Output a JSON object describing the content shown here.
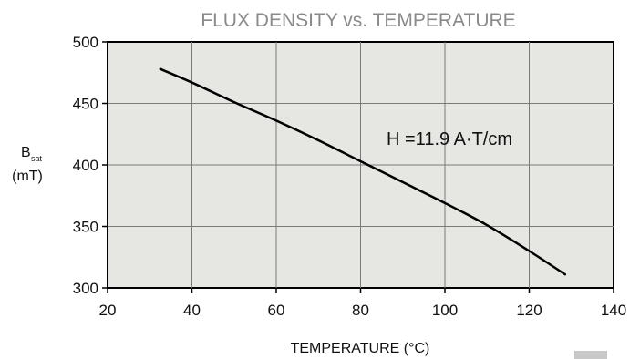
{
  "chart_data": {
    "type": "line",
    "title": "FLUX DENSITY vs. TEMPERATURE",
    "xlabel": "TEMPERATURE (°C)",
    "ylabel_main": "B",
    "ylabel_sub": "sat",
    "ylabel_unit": "(mT)",
    "xlim": [
      20,
      140
    ],
    "ylim": [
      300,
      500
    ],
    "xticks": [
      20,
      40,
      60,
      80,
      100,
      120,
      140
    ],
    "yticks": [
      300,
      350,
      400,
      450,
      500
    ],
    "grid": true,
    "annotation": "H =11.9 A·T/cm",
    "series": [
      {
        "x": [
          32.5,
          40,
          50,
          60,
          70,
          80,
          90,
          100,
          110,
          120,
          128.5
        ],
        "y": [
          478,
          467,
          451,
          436,
          420,
          403,
          386,
          369,
          351,
          330,
          311
        ]
      }
    ],
    "colors": {
      "plot_bg": "#e6e6e3",
      "title": "#8a8a8a",
      "line": "#000000"
    }
  }
}
